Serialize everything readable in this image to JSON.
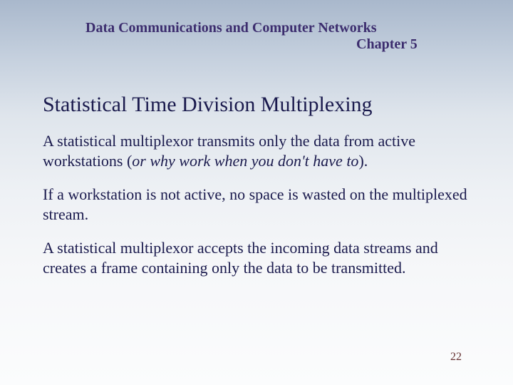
{
  "header": {
    "line1": "Data Communications and Computer Networks",
    "line2": "Chapter 5",
    "fontsize_pt": 20,
    "color": "#3c2d6e"
  },
  "title": {
    "text": "Statistical Time Division Multiplexing",
    "fontsize_pt": 30,
    "color": "#1a1a4d"
  },
  "body": {
    "fontsize_pt": 22,
    "color": "#1a1a4d",
    "para1_part1": "A statistical multiplexor transmits only the data from active workstations (",
    "para1_italic": "or why work when you don't have to",
    "para1_part2": ").",
    "para2": "If a workstation is not active, no space is wasted on the multiplexed stream.",
    "para3": "A statistical multiplexor accepts the incoming data streams and creates a frame containing only the data to be transmitted."
  },
  "pagenum": {
    "text": "22",
    "fontsize_pt": 16,
    "color": "#663333"
  },
  "background": {
    "gradient_top": "#a9b8cc",
    "gradient_bottom": "#fbfcfd"
  }
}
